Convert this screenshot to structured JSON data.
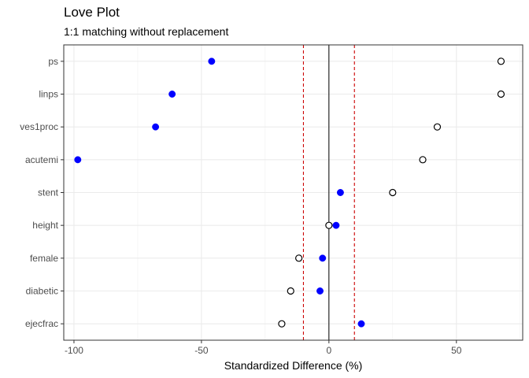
{
  "chart_data": {
    "type": "scatter",
    "title": "Love Plot",
    "subtitle": "1:1 matching without replacement",
    "xlabel": "Standardized Difference (%)",
    "ylabel": "",
    "xlim": [
      -104,
      76
    ],
    "x_ticks": [
      -100,
      -50,
      0,
      50
    ],
    "grid": true,
    "categories": [
      "ps",
      "linps",
      "ves1proc",
      "acutemi",
      "stent",
      "height",
      "female",
      "diabetic",
      "ejecfrac"
    ],
    "series": [
      {
        "marker": "filled",
        "color": "#0000ff",
        "values": [
          -46,
          -61.5,
          -68,
          -98.5,
          4.5,
          2.8,
          -2.5,
          -3.5,
          12.7
        ]
      },
      {
        "marker": "open",
        "color": "#000000",
        "values": [
          67.5,
          67.5,
          42.5,
          36.8,
          25,
          0,
          -11.8,
          -15,
          -18.5
        ]
      }
    ],
    "reference_lines": {
      "solid": 0,
      "dashed": [
        -10,
        10
      ],
      "dashed_color": "#cc0000"
    }
  }
}
